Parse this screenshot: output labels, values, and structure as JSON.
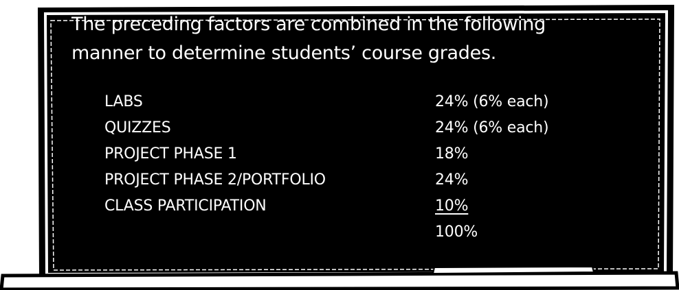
{
  "intro_lines": [
    "The preceding factors are combined in the following",
    "manner to determine students’ course grades."
  ],
  "table": {
    "rows": [
      [
        "LABS",
        "24% (6% each)"
      ],
      [
        "QUIZZES",
        "24% (6% each)"
      ],
      [
        "PROJECT PHASE 1",
        "18%"
      ],
      [
        "PROJECT PHASE 2/PORTFOLIO",
        "24%"
      ],
      [
        "CLASS PARTICIPATION",
        "10%"
      ]
    ],
    "total": "100%"
  }
}
